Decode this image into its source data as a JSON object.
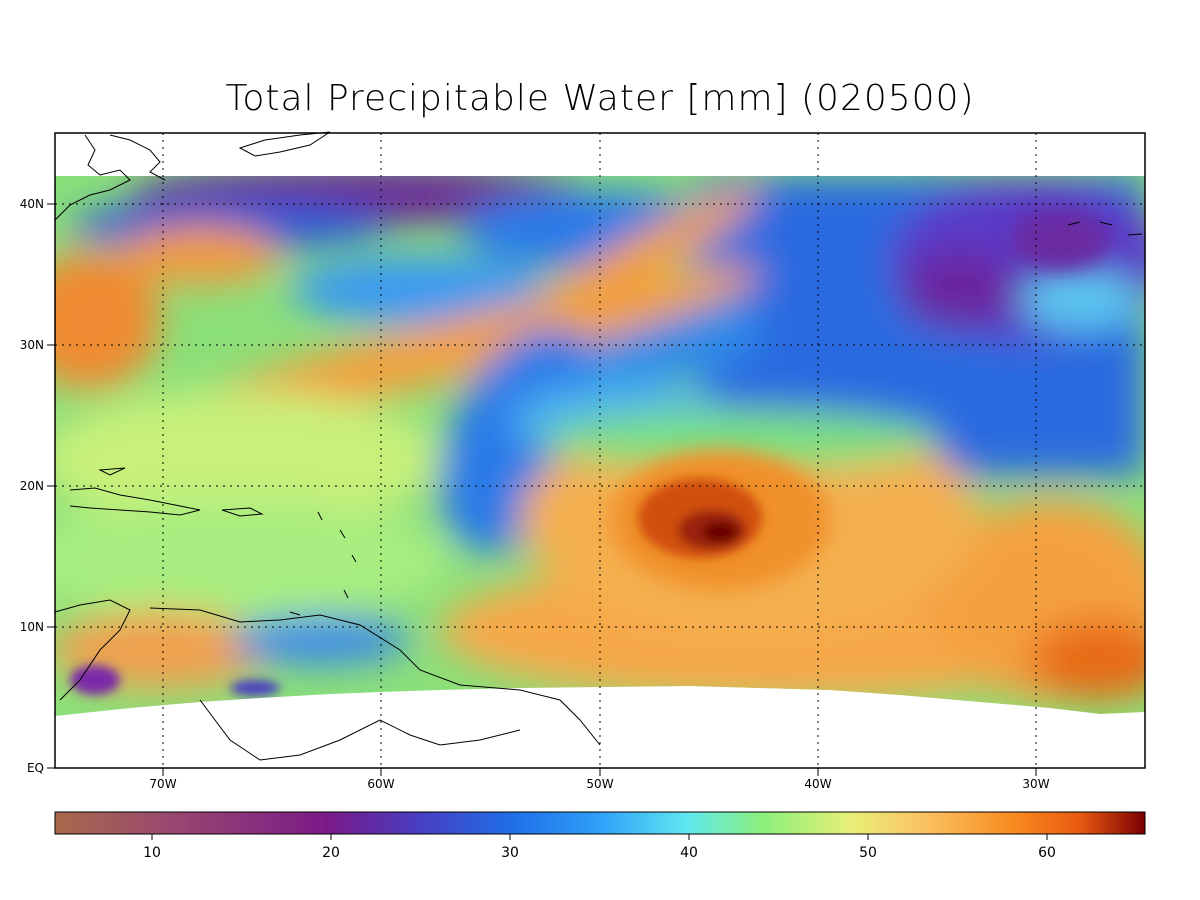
{
  "title": "Total Precipitable Water [mm]  (020500)",
  "map": {
    "x_axis_labels": [
      "70W",
      "60W",
      "50W",
      "40W",
      "30W"
    ],
    "y_axis_labels": [
      "EQ",
      "10N",
      "20N",
      "30N",
      "40N"
    ],
    "lon_range": [
      -75,
      -25
    ],
    "lat_range": [
      0,
      45
    ],
    "data_lat_north": 42,
    "grid": true,
    "grid_style": "dotted"
  },
  "colorbar": {
    "labels": [
      "10",
      "20",
      "30",
      "40",
      "50",
      "60"
    ],
    "range": [
      4.5,
      65.5
    ],
    "units": "mm",
    "colors": [
      "#a8694a",
      "#9a4a6e",
      "#7a1a88",
      "#4a3cc0",
      "#1f6fe8",
      "#2fa0f8",
      "#5fe8f0",
      "#8cf07a",
      "#e8f078",
      "#fbc060",
      "#f88a20",
      "#e85a10",
      "#b02008",
      "#7a0000"
    ]
  },
  "features": {
    "cyclone_center": {
      "lon": -44.5,
      "lat": 17,
      "tpw_mm": 64
    }
  }
}
